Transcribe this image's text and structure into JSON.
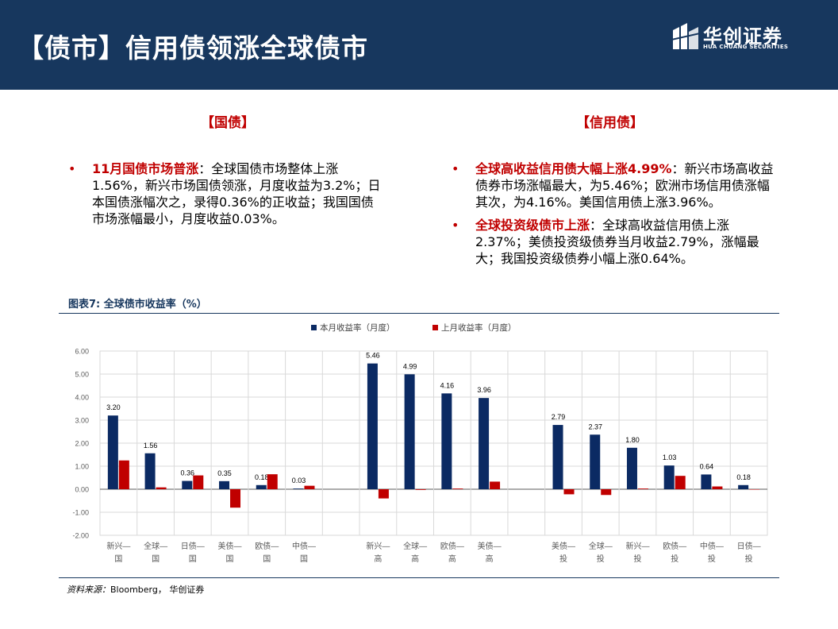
{
  "header": {
    "title": "【债市】信用债领涨全球债市",
    "logo_cn": "华创证券",
    "logo_en": "HUA CHUANG SECURITIES"
  },
  "left": {
    "heading": "【国债】",
    "bullets": [
      {
        "highlight": "11月国债市场普涨",
        "text": "：全球国债市场整体上涨1.56%，新兴市场国债领涨，月度收益为3.2%；日本国债涨幅次之，录得0.36%的正收益；我国国债市场涨幅最小，月度收益0.03%。"
      }
    ]
  },
  "right": {
    "heading": "【信用债】",
    "bullets": [
      {
        "highlight": "全球高收益信用债大幅上涨4.99%",
        "text": "：新兴市场高收益债券市场涨幅最大，为5.46%；欧洲市场信用债涨幅其次，为4.16%。美国信用债上涨3.96%。"
      },
      {
        "highlight": "全球投资级债市上涨",
        "text": "：全球高收益信用债上涨2.37%；美债投资级债券当月收益2.79%，涨幅最大；我国投资级债券小幅上涨0.64%。"
      }
    ]
  },
  "figure": {
    "title": "图表7:  全球债市收益率（%）",
    "source_label": "资料来源：",
    "source_text": "Bloomberg， 华创证券"
  },
  "chart_data": {
    "type": "bar",
    "ylim": [
      -2,
      6
    ],
    "yticks": [
      "6.00",
      "5.00",
      "4.00",
      "3.00",
      "2.00",
      "1.00",
      "0.00",
      "-1.00",
      "-2.00"
    ],
    "grid": true,
    "legend_position": "top",
    "categories": [
      "新兴—国",
      "全球—国",
      "日债—国",
      "美债—国",
      "欧债—国",
      "中债—国",
      "",
      "新兴—高",
      "全球—高",
      "欧债—高",
      "美债—高",
      "",
      "美债—投",
      "全球—投",
      "新兴—投",
      "欧债—投",
      "中债—投",
      "日债—投"
    ],
    "series": [
      {
        "name": "本月收益率（月度）",
        "color": "#0b2a63",
        "values": [
          3.2,
          1.56,
          0.36,
          0.35,
          0.18,
          0.03,
          null,
          5.46,
          4.99,
          4.16,
          3.96,
          null,
          2.79,
          2.37,
          1.8,
          1.03,
          0.64,
          0.18
        ],
        "labels": [
          "3.20",
          "1.56",
          "0.36",
          "0.35",
          "0.18",
          "0.03",
          "",
          "5.46",
          "4.99",
          "4.16",
          "3.96",
          "",
          "2.79",
          "2.37",
          "1.80",
          "1.03",
          "0.64",
          "0.18"
        ]
      },
      {
        "name": "上月收益率（月度）",
        "color": "#c00000",
        "values": [
          1.25,
          0.08,
          0.6,
          -0.8,
          0.65,
          0.15,
          null,
          -0.4,
          -0.03,
          0.03,
          0.33,
          null,
          -0.22,
          -0.25,
          0.03,
          0.58,
          0.12,
          0.0
        ]
      }
    ]
  }
}
